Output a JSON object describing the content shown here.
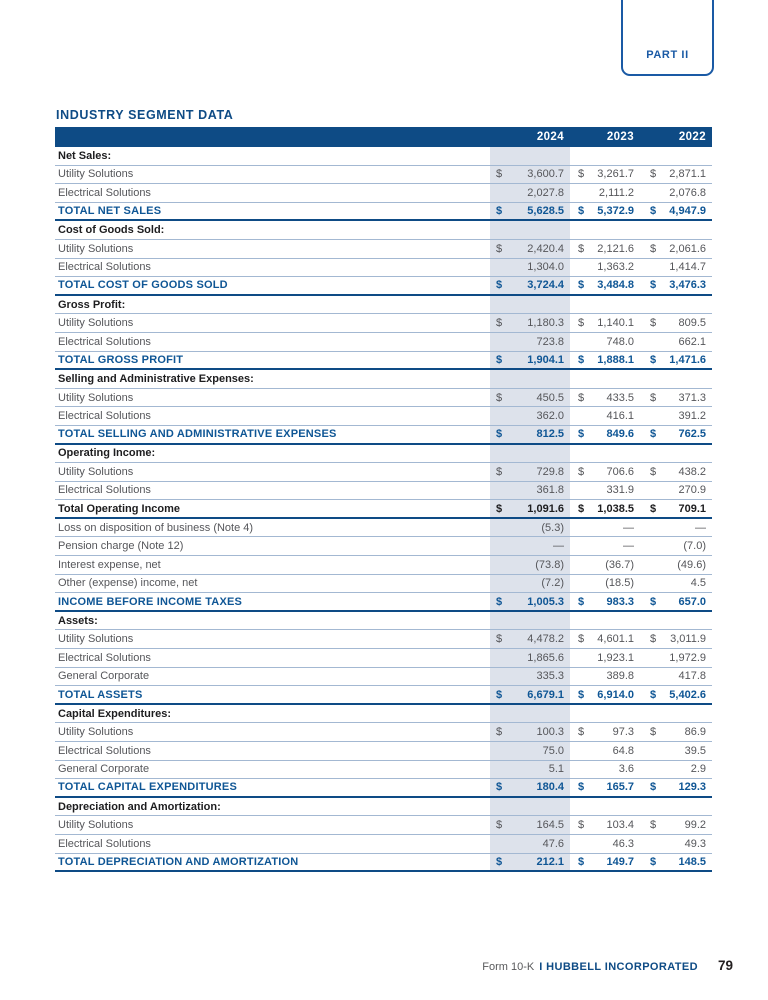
{
  "header": {
    "part_label": "PART II"
  },
  "title": "INDUSTRY SEGMENT DATA",
  "currency_symbol": "$",
  "columns": [
    "2024",
    "2023",
    "2022"
  ],
  "colors": {
    "navy_bar": "#0e4b85",
    "total_text_blue": "#0f5695",
    "highlight_column": "#dde2eb",
    "row_divider": "#a3b8d2",
    "part_box_border": "#1a5aa5"
  },
  "chart_data": {
    "type": "table",
    "title": "INDUSTRY SEGMENT DATA",
    "columns": [
      "2024",
      "2023",
      "2022"
    ],
    "rows": [
      {
        "type": "section",
        "label": "Net Sales:",
        "dollar": false,
        "v2024": "",
        "v2023": "",
        "v2022": ""
      },
      {
        "type": "data",
        "label": "Utility Solutions",
        "dollar": true,
        "v2024": "3,600.7",
        "v2023": "3,261.7",
        "v2022": "2,871.1"
      },
      {
        "type": "data",
        "label": "Electrical Solutions",
        "dollar": false,
        "v2024": "2,027.8",
        "v2023": "2,111.2",
        "v2022": "2,076.8"
      },
      {
        "type": "total",
        "label": "TOTAL NET SALES",
        "dollar": true,
        "v2024": "5,628.5",
        "v2023": "5,372.9",
        "v2022": "4,947.9"
      },
      {
        "type": "section",
        "label": "Cost of Goods Sold:",
        "dollar": false,
        "v2024": "",
        "v2023": "",
        "v2022": ""
      },
      {
        "type": "data",
        "label": "Utility Solutions",
        "dollar": true,
        "v2024": "2,420.4",
        "v2023": "2,121.6",
        "v2022": "2,061.6"
      },
      {
        "type": "data",
        "label": "Electrical Solutions",
        "dollar": false,
        "v2024": "1,304.0",
        "v2023": "1,363.2",
        "v2022": "1,414.7"
      },
      {
        "type": "total",
        "label": "TOTAL COST OF GOODS SOLD",
        "dollar": true,
        "v2024": "3,724.4",
        "v2023": "3,484.8",
        "v2022": "3,476.3"
      },
      {
        "type": "section",
        "label": "Gross Profit:",
        "dollar": false,
        "v2024": "",
        "v2023": "",
        "v2022": ""
      },
      {
        "type": "data",
        "label": "Utility Solutions",
        "dollar": true,
        "v2024": "1,180.3",
        "v2023": "1,140.1",
        "v2022": "809.5"
      },
      {
        "type": "data",
        "label": "Electrical Solutions",
        "dollar": false,
        "v2024": "723.8",
        "v2023": "748.0",
        "v2022": "662.1"
      },
      {
        "type": "total",
        "label": "TOTAL GROSS PROFIT",
        "dollar": true,
        "v2024": "1,904.1",
        "v2023": "1,888.1",
        "v2022": "1,471.6"
      },
      {
        "type": "section",
        "label": "Selling and Administrative Expenses:",
        "dollar": false,
        "v2024": "",
        "v2023": "",
        "v2022": ""
      },
      {
        "type": "data",
        "label": "Utility Solutions",
        "dollar": true,
        "v2024": "450.5",
        "v2023": "433.5",
        "v2022": "371.3"
      },
      {
        "type": "data",
        "label": "Electrical Solutions",
        "dollar": false,
        "v2024": "362.0",
        "v2023": "416.1",
        "v2022": "391.2"
      },
      {
        "type": "total",
        "label": "TOTAL SELLING AND ADMINISTRATIVE EXPENSES",
        "dollar": true,
        "v2024": "812.5",
        "v2023": "849.6",
        "v2022": "762.5"
      },
      {
        "type": "section",
        "label": "Operating Income:",
        "dollar": false,
        "v2024": "",
        "v2023": "",
        "v2022": ""
      },
      {
        "type": "data",
        "label": "Utility Solutions",
        "dollar": true,
        "v2024": "729.8",
        "v2023": "706.6",
        "v2022": "438.2"
      },
      {
        "type": "data",
        "label": "Electrical Solutions",
        "dollar": false,
        "v2024": "361.8",
        "v2023": "331.9",
        "v2022": "270.9"
      },
      {
        "type": "total_black",
        "label": "Total Operating Income",
        "dollar": true,
        "v2024": "1,091.6",
        "v2023": "1,038.5",
        "v2022": "709.1"
      },
      {
        "type": "data",
        "label": "Loss on disposition of business (Note 4)",
        "dollar": false,
        "v2024": "(5.3)",
        "v2023": "—",
        "v2022": "—"
      },
      {
        "type": "data",
        "label": "Pension charge (Note 12)",
        "dollar": false,
        "v2024": "—",
        "v2023": "—",
        "v2022": "(7.0)"
      },
      {
        "type": "data",
        "label": "Interest expense, net",
        "dollar": false,
        "v2024": "(73.8)",
        "v2023": "(36.7)",
        "v2022": "(49.6)"
      },
      {
        "type": "data",
        "label": "Other (expense) income, net",
        "dollar": false,
        "v2024": "(7.2)",
        "v2023": "(18.5)",
        "v2022": "4.5"
      },
      {
        "type": "total",
        "label": "INCOME BEFORE INCOME TAXES",
        "dollar": true,
        "v2024": "1,005.3",
        "v2023": "983.3",
        "v2022": "657.0"
      },
      {
        "type": "section",
        "label": "Assets:",
        "dollar": false,
        "v2024": "",
        "v2023": "",
        "v2022": ""
      },
      {
        "type": "data",
        "label": "Utility Solutions",
        "dollar": true,
        "v2024": "4,478.2",
        "v2023": "4,601.1",
        "v2022": "3,011.9"
      },
      {
        "type": "data",
        "label": "Electrical Solutions",
        "dollar": false,
        "v2024": "1,865.6",
        "v2023": "1,923.1",
        "v2022": "1,972.9"
      },
      {
        "type": "data",
        "label": "General Corporate",
        "dollar": false,
        "v2024": "335.3",
        "v2023": "389.8",
        "v2022": "417.8"
      },
      {
        "type": "total",
        "label": "TOTAL ASSETS",
        "dollar": true,
        "v2024": "6,679.1",
        "v2023": "6,914.0",
        "v2022": "5,402.6"
      },
      {
        "type": "section",
        "label": "Capital Expenditures:",
        "dollar": false,
        "v2024": "",
        "v2023": "",
        "v2022": ""
      },
      {
        "type": "data",
        "label": "Utility Solutions",
        "dollar": true,
        "v2024": "100.3",
        "v2023": "97.3",
        "v2022": "86.9"
      },
      {
        "type": "data",
        "label": "Electrical Solutions",
        "dollar": false,
        "v2024": "75.0",
        "v2023": "64.8",
        "v2022": "39.5"
      },
      {
        "type": "data",
        "label": "General Corporate",
        "dollar": false,
        "v2024": "5.1",
        "v2023": "3.6",
        "v2022": "2.9"
      },
      {
        "type": "total",
        "label": "TOTAL CAPITAL EXPENDITURES",
        "dollar": true,
        "v2024": "180.4",
        "v2023": "165.7",
        "v2022": "129.3"
      },
      {
        "type": "section",
        "label": "Depreciation and Amortization:",
        "dollar": false,
        "v2024": "",
        "v2023": "",
        "v2022": ""
      },
      {
        "type": "data",
        "label": "Utility Solutions",
        "dollar": true,
        "v2024": "164.5",
        "v2023": "103.4",
        "v2022": "99.2"
      },
      {
        "type": "data",
        "label": "Electrical Solutions",
        "dollar": false,
        "v2024": "47.6",
        "v2023": "46.3",
        "v2022": "49.3"
      },
      {
        "type": "total",
        "label": "TOTAL DEPRECIATION AND AMORTIZATION",
        "dollar": true,
        "v2024": "212.1",
        "v2023": "149.7",
        "v2022": "148.5"
      }
    ]
  },
  "footer": {
    "form": "Form 10-K",
    "company": "I HUBBELL INCORPORATED",
    "page": "79"
  }
}
